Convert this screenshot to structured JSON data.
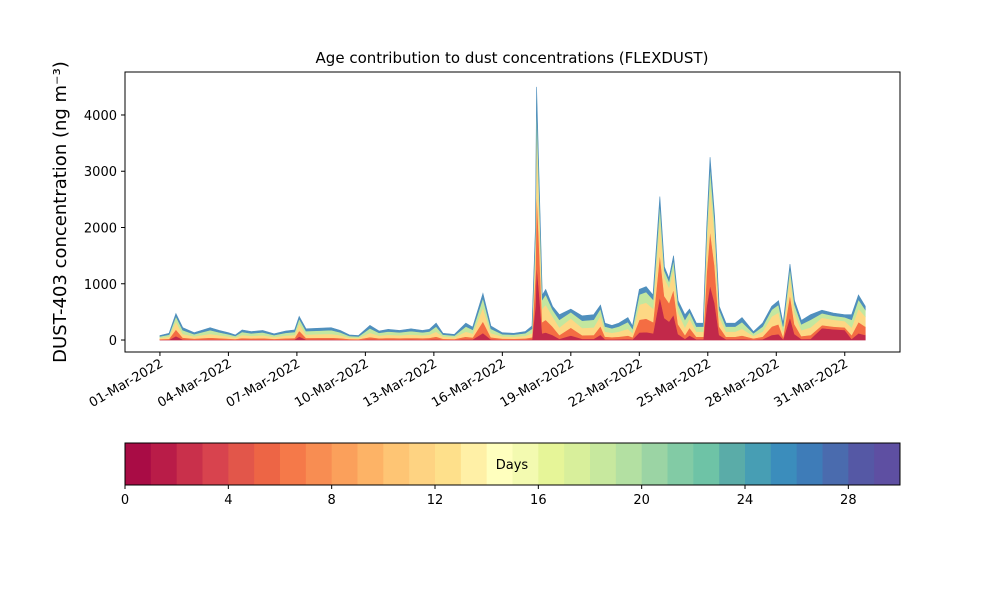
{
  "chart_data": {
    "type": "stacked_area",
    "title": "Age contribution to dust concentrations (FLEXDUST)",
    "ylabel": "DUST-403 concentration (ng m⁻³)",
    "x": [
      0,
      0.4,
      0.7,
      1.0,
      1.5,
      2.2,
      2.6,
      3.0,
      3.3,
      3.6,
      4.0,
      4.5,
      5.0,
      5.5,
      5.9,
      6.1,
      6.4,
      7.0,
      7.5,
      7.9,
      8.3,
      8.7,
      9.2,
      9.6,
      10.0,
      10.5,
      11.0,
      11.5,
      11.8,
      12.1,
      12.4,
      12.9,
      13.4,
      13.7,
      14.15,
      14.5,
      15.0,
      15.5,
      16.0,
      16.3,
      16.45,
      16.5,
      16.6,
      16.75,
      16.9,
      17.2,
      17.5,
      18.0,
      18.5,
      19.0,
      19.3,
      19.5,
      19.8,
      20.1,
      20.5,
      20.7,
      21.0,
      21.3,
      21.6,
      21.9,
      22.1,
      22.3,
      22.5,
      22.7,
      23.0,
      23.2,
      23.5,
      23.8,
      23.95,
      24.1,
      24.3,
      24.5,
      24.8,
      25.2,
      25.5,
      25.8,
      26.0,
      26.4,
      26.8,
      27.1,
      27.3,
      27.6,
      27.8,
      28.1,
      28.5,
      29.0,
      29.5,
      30.0,
      30.3,
      30.6,
      30.9
    ],
    "series": [
      {
        "color": "#c2294a",
        "values": [
          4,
          6,
          70,
          11,
          6,
          11,
          8,
          6,
          4,
          9,
          8,
          8,
          6,
          8,
          9,
          63,
          10,
          10,
          11,
          8,
          4,
          4,
          13,
          8,
          10,
          8,
          10,
          8,
          10,
          15,
          6,
          5,
          15,
          12,
          124,
          12,
          6,
          6,
          8,
          12,
          600,
          1350,
          900,
          120,
          135,
          90,
          22,
          82,
          22,
          22,
          93,
          15,
          13,
          15,
          20,
          12,
          135,
          142,
          120,
          765,
          390,
          330,
          450,
          105,
          22,
          82,
          15,
          15,
          600,
          975,
          660,
          90,
          15,
          15,
          20,
          12,
          8,
          15,
          90,
          105,
          15,
          405,
          105,
          18,
          22,
          212,
          192,
          180,
          22,
          120,
          90
        ]
      },
      {
        "color": "#f46d43",
        "values": [
          12,
          18,
          118,
          33,
          20,
          33,
          26,
          20,
          14,
          27,
          22,
          26,
          16,
          24,
          27,
          105,
          30,
          32,
          33,
          26,
          14,
          12,
          39,
          24,
          28,
          26,
          30,
          26,
          28,
          45,
          18,
          15,
          45,
          34,
          208,
          38,
          20,
          18,
          22,
          38,
          600,
          1350,
          900,
          200,
          225,
          150,
          68,
          138,
          64,
          68,
          155,
          45,
          39,
          45,
          60,
          38,
          225,
          238,
          200,
          765,
          390,
          330,
          450,
          175,
          68,
          138,
          45,
          45,
          600,
          975,
          660,
          150,
          45,
          45,
          60,
          38,
          22,
          45,
          150,
          175,
          45,
          405,
          175,
          52,
          68,
          53,
          48,
          45,
          68,
          200,
          150
        ]
      },
      {
        "color": "#fdd884",
        "values": [
          24,
          36,
          141,
          66,
          39,
          66,
          51,
          39,
          27,
          54,
          45,
          51,
          33,
          48,
          54,
          126,
          60,
          63,
          66,
          51,
          27,
          24,
          78,
          48,
          57,
          51,
          60,
          51,
          57,
          90,
          36,
          30,
          90,
          69,
          249,
          75,
          39,
          36,
          45,
          75,
          500,
          1125,
          750,
          240,
          270,
          180,
          135,
          165,
          129,
          135,
          186,
          90,
          78,
          90,
          120,
          75,
          270,
          285,
          240,
          638,
          325,
          275,
          375,
          210,
          135,
          165,
          90,
          90,
          500,
          812,
          550,
          180,
          90,
          90,
          120,
          75,
          45,
          90,
          180,
          210,
          90,
          338,
          210,
          105,
          135,
          132,
          120,
          112,
          135,
          240,
          180
        ]
      },
      {
        "color": "#c3e79f",
        "values": [
          24,
          36,
          94,
          66,
          39,
          66,
          51,
          39,
          27,
          54,
          45,
          51,
          33,
          48,
          54,
          84,
          60,
          63,
          66,
          51,
          27,
          24,
          78,
          48,
          57,
          51,
          60,
          51,
          57,
          90,
          36,
          30,
          90,
          69,
          166,
          75,
          39,
          36,
          45,
          75,
          200,
          450,
          300,
          160,
          180,
          120,
          135,
          110,
          129,
          135,
          124,
          90,
          78,
          90,
          120,
          75,
          180,
          190,
          160,
          255,
          130,
          110,
          150,
          140,
          135,
          110,
          90,
          90,
          200,
          325,
          220,
          120,
          90,
          90,
          120,
          75,
          45,
          90,
          120,
          140,
          90,
          135,
          140,
          105,
          135,
          80,
          72,
          68,
          135,
          160,
          120
        ]
      },
      {
        "color": "#4f8fbd",
        "values": [
          16,
          24,
          47,
          44,
          26,
          44,
          34,
          26,
          18,
          36,
          30,
          34,
          22,
          32,
          36,
          42,
          40,
          42,
          44,
          34,
          18,
          16,
          52,
          32,
          38,
          34,
          40,
          34,
          38,
          60,
          24,
          20,
          60,
          46,
          83,
          50,
          26,
          24,
          30,
          50,
          100,
          225,
          150,
          80,
          90,
          60,
          90,
          55,
          86,
          90,
          62,
          60,
          52,
          60,
          80,
          50,
          90,
          95,
          80,
          127,
          65,
          55,
          75,
          70,
          90,
          55,
          60,
          60,
          100,
          163,
          110,
          60,
          60,
          60,
          80,
          50,
          30,
          60,
          60,
          70,
          60,
          67,
          70,
          70,
          90,
          53,
          48,
          45,
          90,
          80,
          60
        ]
      }
    ],
    "xlim": [
      -1.53,
      32.42
    ],
    "xticks": [
      {
        "value": 0,
        "label": "01-Mar-2022"
      },
      {
        "value": 3,
        "label": "04-Mar-2022"
      },
      {
        "value": 6,
        "label": "07-Mar-2022"
      },
      {
        "value": 9,
        "label": "10-Mar-2022"
      },
      {
        "value": 12,
        "label": "13-Mar-2022"
      },
      {
        "value": 15,
        "label": "16-Mar-2022"
      },
      {
        "value": 18,
        "label": "19-Mar-2022"
      },
      {
        "value": 21,
        "label": "22-Mar-2022"
      },
      {
        "value": 24,
        "label": "25-Mar-2022"
      },
      {
        "value": 27,
        "label": "28-Mar-2022"
      },
      {
        "value": 30,
        "label": "31-Mar-2022"
      }
    ],
    "ylim": [
      -213,
      4764
    ],
    "yticks": [
      0,
      1000,
      2000,
      3000,
      4000
    ],
    "colorbar": {
      "label": "Days",
      "lim": [
        0,
        30
      ],
      "ticks": [
        0,
        4,
        8,
        12,
        16,
        20,
        24,
        28
      ],
      "colors": [
        "#a90c45",
        "#b91c48",
        "#c9304b",
        "#d8434e",
        "#e2564a",
        "#ed6545",
        "#f57949",
        "#f88d52",
        "#fba05b",
        "#fdb366",
        "#fec574",
        "#fed382",
        "#fee08b",
        "#fff0a6",
        "#ffffbe",
        "#f3fab0",
        "#e6f598",
        "#d8ef9b",
        "#c7e89e",
        "#b3e0a2",
        "#9bd4a4",
        "#82cba5",
        "#6ec3a6",
        "#5aaca8",
        "#479eb4",
        "#3b8dbc",
        "#3e7cb8",
        "#4a6bae",
        "#5558a5",
        "#5e4fa2"
      ]
    }
  }
}
